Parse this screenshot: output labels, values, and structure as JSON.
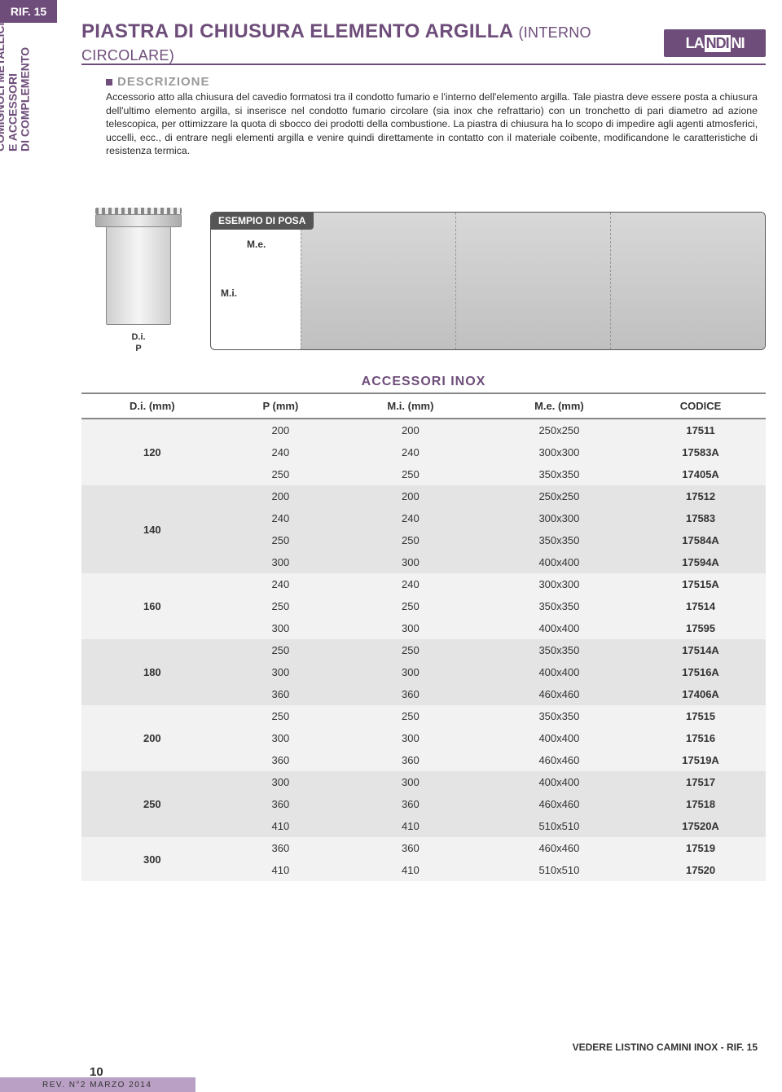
{
  "rif": "RIF. 15",
  "sidebar": "COMIGNOLI METALLICI\nE ACCESSORI\nDI COMPLEMENTO",
  "title_main": "PIASTRA DI CHIUSURA ELEMENTO ARGILLA",
  "title_sub": "(INTERNO CIRCOLARE)",
  "logo_pre": "LA",
  "logo_mid": "NDI",
  "logo_post": "NI",
  "desc_h": "DESCRIZIONE",
  "desc_text": "Accessorio atto alla chiusura del cavedio formatosi tra il condotto fumario e l'interno dell'elemento argilla. Tale piastra deve essere posta a chiusura dell'ultimo elemento argilla, si inserisce nel condotto fumario circolare (sia inox che refrattario) con un tronchetto di pari diametro ad azione telescopica, per ottimizzare la quota di sbocco dei prodotti della combustione. La piastra di chiusura ha lo scopo di impedire agli agenti atmosferici, uccelli, ecc., di entrare negli elementi argilla e venire quindi direttamente in contatto con il materiale coibente, modificandone le caratteristiche di resistenza termica.",
  "diag_di": "D.i.",
  "diag_p": "P",
  "ex_title": "ESEMPIO DI POSA",
  "ex_me": "M.e.",
  "ex_mi": "M.i.",
  "table_title": "ACCESSORI INOX",
  "cols": [
    "D.i. (mm)",
    "P (mm)",
    "M.i. (mm)",
    "M.e. (mm)",
    "CODICE"
  ],
  "groups": [
    {
      "di": "120",
      "rows": [
        [
          "200",
          "200",
          "250x250",
          "17511"
        ],
        [
          "240",
          "240",
          "300x300",
          "17583A"
        ],
        [
          "250",
          "250",
          "350x350",
          "17405A"
        ]
      ]
    },
    {
      "di": "140",
      "rows": [
        [
          "200",
          "200",
          "250x250",
          "17512"
        ],
        [
          "240",
          "240",
          "300x300",
          "17583"
        ],
        [
          "250",
          "250",
          "350x350",
          "17584A"
        ],
        [
          "300",
          "300",
          "400x400",
          "17594A"
        ]
      ]
    },
    {
      "di": "160",
      "rows": [
        [
          "240",
          "240",
          "300x300",
          "17515A"
        ],
        [
          "250",
          "250",
          "350x350",
          "17514"
        ],
        [
          "300",
          "300",
          "400x400",
          "17595"
        ]
      ]
    },
    {
      "di": "180",
      "rows": [
        [
          "250",
          "250",
          "350x350",
          "17514A"
        ],
        [
          "300",
          "300",
          "400x400",
          "17516A"
        ],
        [
          "360",
          "360",
          "460x460",
          "17406A"
        ]
      ]
    },
    {
      "di": "200",
      "rows": [
        [
          "250",
          "250",
          "350x350",
          "17515"
        ],
        [
          "300",
          "300",
          "400x400",
          "17516"
        ],
        [
          "360",
          "360",
          "460x460",
          "17519A"
        ]
      ]
    },
    {
      "di": "250",
      "rows": [
        [
          "300",
          "300",
          "400x400",
          "17517"
        ],
        [
          "360",
          "360",
          "460x460",
          "17518"
        ],
        [
          "410",
          "410",
          "510x510",
          "17520A"
        ]
      ]
    },
    {
      "di": "300",
      "rows": [
        [
          "360",
          "360",
          "460x460",
          "17519"
        ],
        [
          "410",
          "410",
          "510x510",
          "17520"
        ]
      ]
    }
  ],
  "shade_classes": [
    "gA",
    "gB"
  ],
  "footer_ref": "VEDERE LISTINO CAMINI INOX - RIF. 15",
  "page_num": "10",
  "rev": "REV. N°2 MARZO 2014",
  "colors": {
    "accent": "#6e4d7a",
    "accent_light": "#b9a0c4",
    "grey_a": "#f2f2f2",
    "grey_b": "#e4e4e4"
  }
}
